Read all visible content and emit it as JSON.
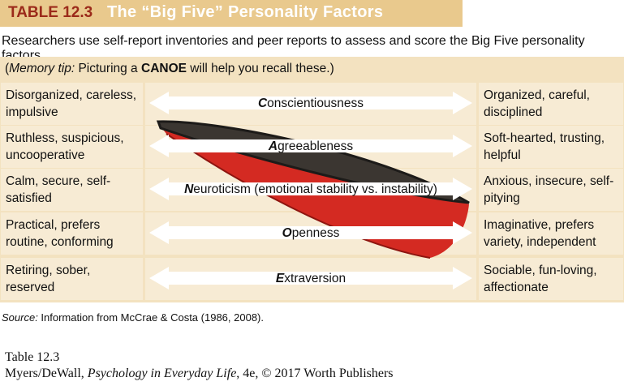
{
  "header": {
    "label": "TABLE 12.3",
    "title": "The “Big Five” Personality Factors"
  },
  "subtitle": "Researchers use self-report inventories and peer reports to assess and score the Big Five personality factors.",
  "memory_tip": [
    "(",
    "Memory tip:",
    " Picturing a ",
    "CANOE",
    " will help you recall these.)"
  ],
  "rows": [
    {
      "low": "Disorganized, careless, impulsive",
      "trait": "Conscientiousness",
      "high": "Organized, careful, disciplined"
    },
    {
      "low": "Ruthless, suspicious, uncooperative",
      "trait": "Agreeableness",
      "high": "Soft-hearted, trusting, helpful"
    },
    {
      "low": "Calm, secure, self-satisfied",
      "trait": "Neuroticism (emotional stability vs. instability)",
      "high": "Anxious, insecure, self-pitying"
    },
    {
      "low": "Practical, prefers routine, conforming",
      "trait": "Openness",
      "high": "Imaginative, prefers variety, independent"
    },
    {
      "low": "Retiring, sober, reserved",
      "trait": "Extraversion",
      "high": "Sociable, fun-loving, affectionate"
    }
  ],
  "source": {
    "label": "Source:",
    "text": " Information from McCrae & Costa (1986, 2008)."
  },
  "footer": {
    "caption": "Table 12.3",
    "credit": [
      "Myers/DeWall, ",
      "Psychology in Everyday Life",
      ", 4e, © 2017 Worth Publishers"
    ]
  }
}
